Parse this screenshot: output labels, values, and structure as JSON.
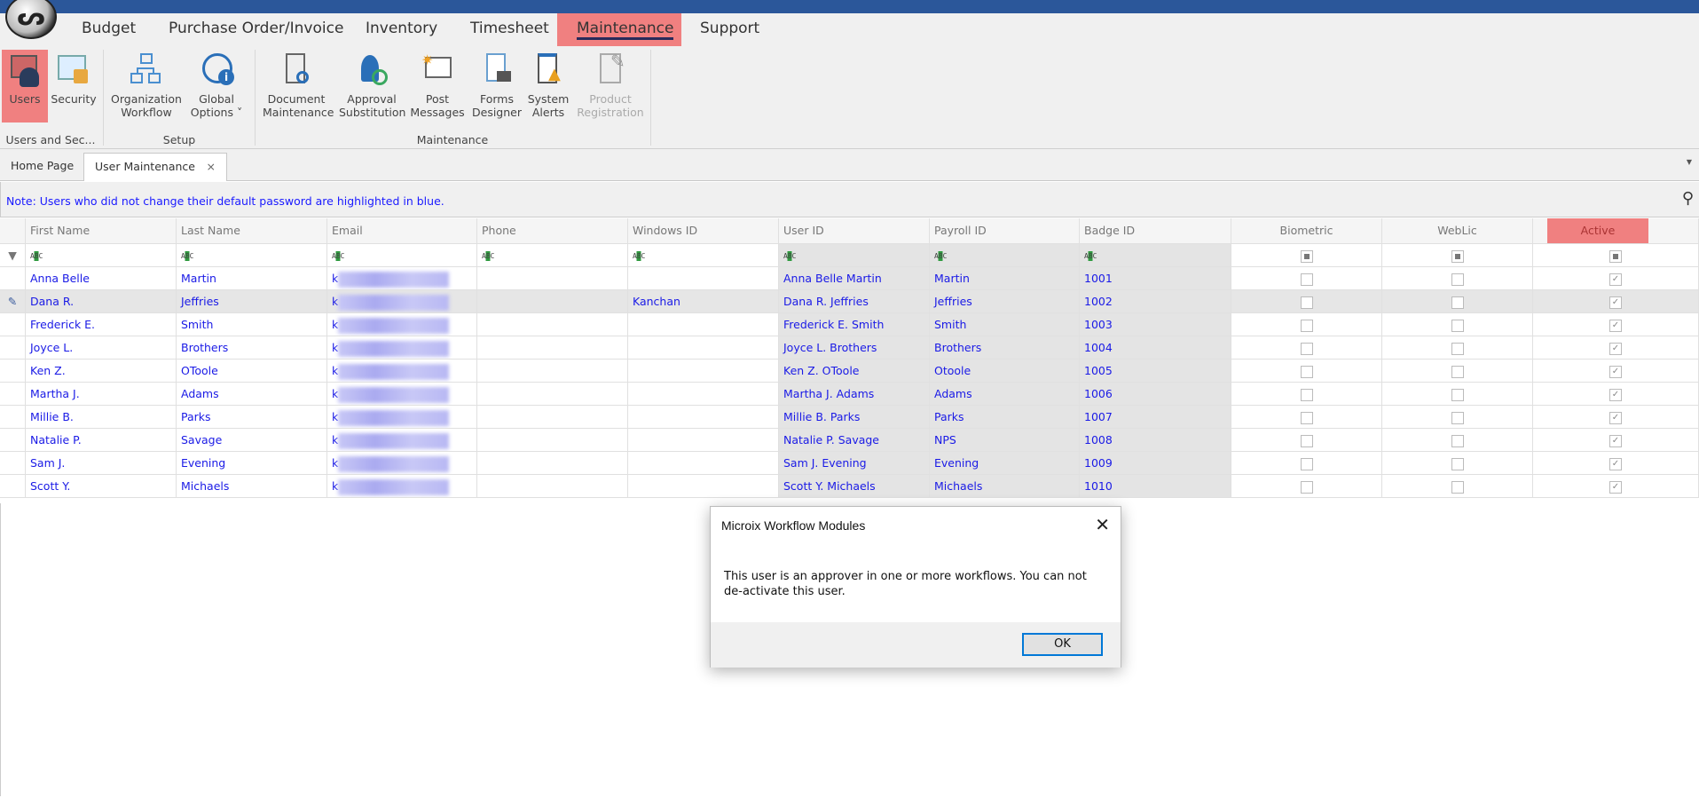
{
  "menu": {
    "tabs": [
      "Budget",
      "Purchase Order/Invoice",
      "Inventory",
      "Timesheet",
      "Maintenance",
      "Support"
    ],
    "active": "Maintenance"
  },
  "ribbon": {
    "buttons": [
      {
        "label1": "Users",
        "label2": ""
      },
      {
        "label1": "Security",
        "label2": ""
      },
      {
        "label1": "Organization",
        "label2": "Workflow"
      },
      {
        "label1": "Global",
        "label2": "Options ˅"
      },
      {
        "label1": "Document",
        "label2": "Maintenance"
      },
      {
        "label1": "Approval",
        "label2": "Substitution"
      },
      {
        "label1": "Post",
        "label2": "Messages"
      },
      {
        "label1": "Forms",
        "label2": "Designer"
      },
      {
        "label1": "System",
        "label2": "Alerts"
      },
      {
        "label1": "Product",
        "label2": "Registration"
      }
    ],
    "groups": [
      "Users and Sec...",
      "Setup",
      "Maintenance"
    ]
  },
  "doctabs": {
    "home": "Home Page",
    "current": "User Maintenance",
    "close": "×"
  },
  "note": "Note: Users who did not change their default password are highlighted in blue.",
  "grid": {
    "columns": [
      "First Name",
      "Last Name",
      "Email",
      "Phone",
      "Windows ID",
      "User ID",
      "Payroll ID",
      "Badge ID",
      "Biometric",
      "WebLic",
      "Active"
    ],
    "filter_glyph": "ABC",
    "rows": [
      {
        "first": "Anna Belle",
        "last": "Martin",
        "email": "k",
        "phone": "",
        "win": "",
        "uid": "Anna Belle Martin",
        "payroll": "Martin",
        "badge": "1001",
        "bio": false,
        "web": false,
        "active": true
      },
      {
        "first": "Dana R.",
        "last": "Jeffries",
        "email": "k",
        "phone": "",
        "win": "Kanchan",
        "uid": "Dana R. Jeffries",
        "payroll": "Jeffries",
        "badge": "1002",
        "bio": false,
        "web": false,
        "active": true
      },
      {
        "first": "Frederick E.",
        "last": "Smith",
        "email": "k",
        "phone": "",
        "win": "",
        "uid": "Frederick E. Smith",
        "payroll": "Smith",
        "badge": "1003",
        "bio": false,
        "web": false,
        "active": true
      },
      {
        "first": "Joyce L.",
        "last": "Brothers",
        "email": "k",
        "phone": "",
        "win": "",
        "uid": "Joyce L. Brothers",
        "payroll": "Brothers",
        "badge": "1004",
        "bio": false,
        "web": false,
        "active": true
      },
      {
        "first": "Ken Z.",
        "last": "OToole",
        "email": "k",
        "phone": "",
        "win": "",
        "uid": "Ken Z. OToole",
        "payroll": "Otoole",
        "badge": "1005",
        "bio": false,
        "web": false,
        "active": true
      },
      {
        "first": "Martha J.",
        "last": "Adams",
        "email": "k",
        "phone": "",
        "win": "",
        "uid": "Martha J. Adams",
        "payroll": "Adams",
        "badge": "1006",
        "bio": false,
        "web": false,
        "active": true
      },
      {
        "first": "Millie B.",
        "last": "Parks",
        "email": "k",
        "phone": "",
        "win": "",
        "uid": "Millie B. Parks",
        "payroll": "Parks",
        "badge": "1007",
        "bio": false,
        "web": false,
        "active": true
      },
      {
        "first": "Natalie P.",
        "last": "Savage",
        "email": "k",
        "phone": "",
        "win": "",
        "uid": "Natalie P. Savage",
        "payroll": "NPS",
        "badge": "1008",
        "bio": false,
        "web": false,
        "active": true
      },
      {
        "first": "Sam J.",
        "last": "Evening",
        "email": "k",
        "phone": "",
        "win": "",
        "uid": "Sam J. Evening",
        "payroll": "Evening",
        "badge": "1009",
        "bio": false,
        "web": false,
        "active": true
      },
      {
        "first": "Scott Y.",
        "last": "Michaels",
        "email": "k",
        "phone": "",
        "win": "",
        "uid": "Scott Y. Michaels",
        "payroll": "Michaels",
        "badge": "1010",
        "bio": false,
        "web": false,
        "active": true
      }
    ],
    "selected_row": 1
  },
  "dialog": {
    "title": "Microix Workflow Modules",
    "message": "This user is an approver in one or more workflows. You can not de-activate this user.",
    "ok": "OK",
    "close": "✕"
  },
  "colors": {
    "topbar": "#2b579a",
    "highlight": "#f08080",
    "link_blue": "#1a1ae6"
  }
}
